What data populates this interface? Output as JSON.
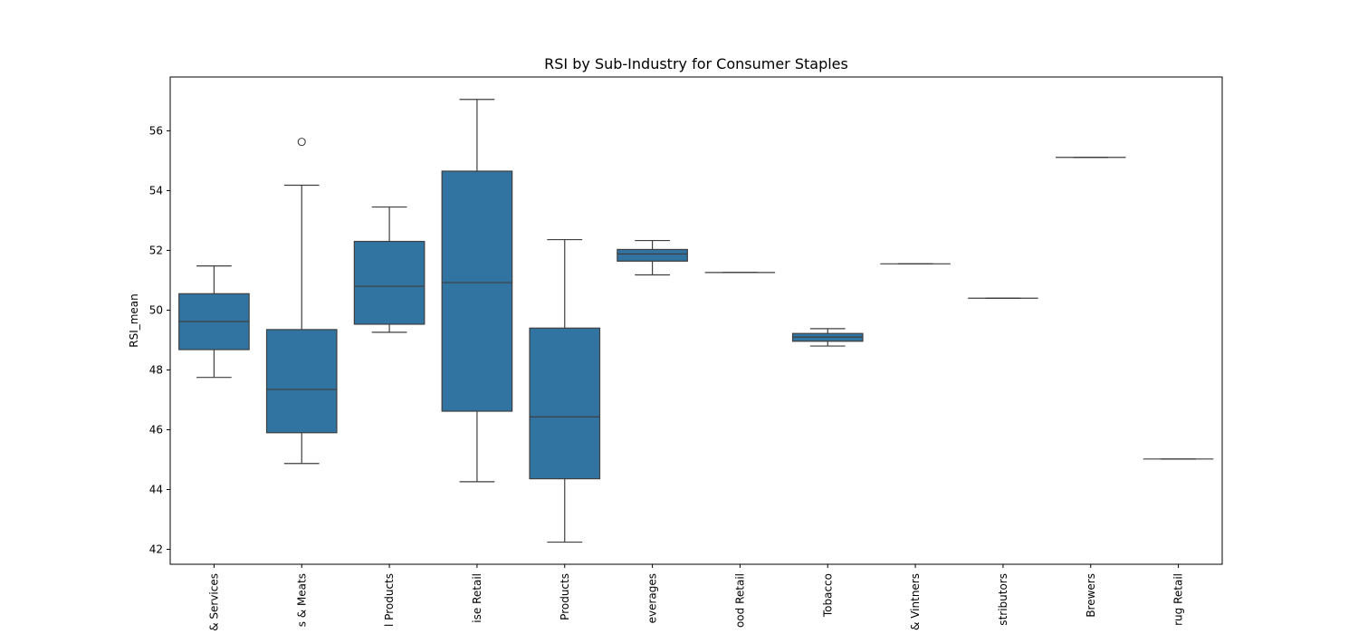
{
  "chart_data": {
    "type": "box",
    "title": "RSI by Sub-Industry for Consumer Staples",
    "xlabel": "",
    "ylabel": "RSI_mean",
    "ylim": [
      41.5,
      57.8
    ],
    "yticks": [
      42,
      44,
      46,
      48,
      50,
      52,
      54,
      56
    ],
    "grid": false,
    "legend": "none",
    "box_color": "#3274a1",
    "line_color": "#3f3f3f",
    "categories": [
      "Food Services",
      "Packaged Foods & Meats",
      "Personal Products",
      "Consumer Staples Merchandise Retail",
      "Household Products",
      "Soft Drinks & Non-alcoholic Beverages",
      "Food Retail",
      "Tobacco",
      "Distillers & Vintners",
      "Food Distributors",
      "Brewers",
      "Drug Retail"
    ],
    "category_labels_visible": [
      "& Services",
      "s & Meats",
      "l Products",
      "ise Retail",
      "Products",
      "everages",
      "ood Retail",
      "Tobacco",
      "& Vintners",
      "stributors",
      "Brewers",
      "rug Retail"
    ],
    "boxes": [
      {
        "whislo": 47.75,
        "q1": 48.68,
        "med": 49.62,
        "q3": 50.55,
        "whishi": 51.48,
        "fliers": []
      },
      {
        "whislo": 44.87,
        "q1": 45.9,
        "med": 47.35,
        "q3": 49.35,
        "whishi": 54.18,
        "fliers": [
          55.63
        ]
      },
      {
        "whislo": 49.26,
        "q1": 49.53,
        "med": 50.8,
        "q3": 52.3,
        "whishi": 53.45,
        "fliers": []
      },
      {
        "whislo": 44.26,
        "q1": 46.62,
        "med": 50.92,
        "q3": 54.65,
        "whishi": 57.05,
        "fliers": []
      },
      {
        "whislo": 42.24,
        "q1": 44.36,
        "med": 46.43,
        "q3": 49.4,
        "whishi": 52.36,
        "fliers": []
      },
      {
        "whislo": 51.18,
        "q1": 51.64,
        "med": 51.88,
        "q3": 52.03,
        "whishi": 52.33,
        "fliers": []
      },
      {
        "whislo": 51.26,
        "q1": 51.26,
        "med": 51.26,
        "q3": 51.26,
        "whishi": 51.26,
        "fliers": []
      },
      {
        "whislo": 48.8,
        "q1": 48.96,
        "med": 49.1,
        "q3": 49.22,
        "whishi": 49.38,
        "fliers": []
      },
      {
        "whislo": 51.55,
        "q1": 51.55,
        "med": 51.55,
        "q3": 51.55,
        "whishi": 51.55,
        "fliers": []
      },
      {
        "whislo": 50.4,
        "q1": 50.4,
        "med": 50.4,
        "q3": 50.4,
        "whishi": 50.4,
        "fliers": []
      },
      {
        "whislo": 55.11,
        "q1": 55.11,
        "med": 55.11,
        "q3": 55.11,
        "whishi": 55.11,
        "fliers": []
      },
      {
        "whislo": 45.02,
        "q1": 45.02,
        "med": 45.02,
        "q3": 45.02,
        "whishi": 45.02,
        "fliers": []
      }
    ]
  }
}
